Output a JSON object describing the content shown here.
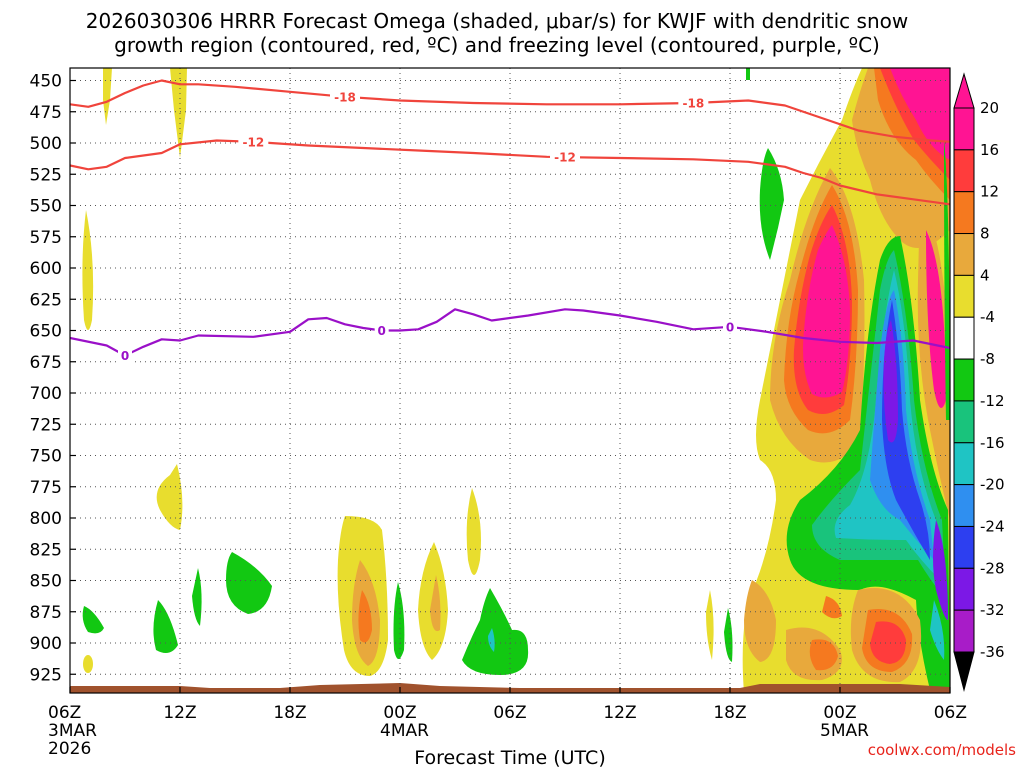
{
  "chart_data": {
    "type": "heatmap",
    "title_lines": [
      "2026030306 HRRR Forecast Omega (shaded, μbar/s) for KWJF with dendritic snow",
      "growth region (contoured, red, ºC) and freezing level (contoured, purple, ºC)"
    ],
    "xlabel": "Forecast Time (UTC)",
    "credit": "coolwx.com/models",
    "x_range_hours": [
      0,
      48
    ],
    "x_ticks": [
      {
        "hour": 0,
        "label": "06Z",
        "sub": [
          "3MAR",
          "2026"
        ]
      },
      {
        "hour": 6,
        "label": "12Z",
        "sub": []
      },
      {
        "hour": 12,
        "label": "18Z",
        "sub": []
      },
      {
        "hour": 18,
        "label": "00Z",
        "sub": [
          "4MAR"
        ]
      },
      {
        "hour": 24,
        "label": "06Z",
        "sub": []
      },
      {
        "hour": 30,
        "label": "12Z",
        "sub": []
      },
      {
        "hour": 36,
        "label": "18Z",
        "sub": []
      },
      {
        "hour": 42,
        "label": "00Z",
        "sub": [
          "5MAR"
        ]
      },
      {
        "hour": 48,
        "label": "06Z",
        "sub": []
      }
    ],
    "y_range_hpa": [
      440,
      940
    ],
    "y_ticks": [
      "450",
      "475",
      "500",
      "525",
      "550",
      "575",
      "600",
      "625",
      "650",
      "675",
      "700",
      "725",
      "750",
      "775",
      "800",
      "825",
      "850",
      "875",
      "900",
      "925"
    ],
    "colorbar": {
      "ticks": [
        "20",
        "16",
        "12",
        "8",
        "4",
        "-4",
        "-8",
        "-12",
        "-16",
        "-20",
        "-24",
        "-28",
        "-32",
        "-36"
      ],
      "bins": [
        "#ff1493",
        "#ff3c3c",
        "#f5791f",
        "#e8a93c",
        "#e8dd2e",
        "#ffffff",
        "#12c812",
        "#19c37c",
        "#1fc4c4",
        "#2f8ff0",
        "#2d3ff0",
        "#7c18e6",
        "#a81cc8",
        "#aaaaaa"
      ]
    },
    "contours": [
      {
        "name": "-18",
        "label": "-18",
        "color": "#f0443c",
        "points": [
          [
            0,
            469
          ],
          [
            1,
            471
          ],
          [
            2,
            467
          ],
          [
            3,
            460
          ],
          [
            4,
            454
          ],
          [
            5,
            450
          ],
          [
            6,
            453
          ],
          [
            7,
            453
          ],
          [
            9,
            455
          ],
          [
            12,
            459
          ],
          [
            15,
            463
          ],
          [
            18,
            466
          ],
          [
            22,
            468
          ],
          [
            26,
            469
          ],
          [
            30,
            469
          ],
          [
            34,
            468
          ],
          [
            37,
            466
          ],
          [
            39,
            470
          ],
          [
            41,
            480
          ],
          [
            43,
            490
          ],
          [
            45,
            495
          ],
          [
            47,
            498
          ],
          [
            48,
            499
          ]
        ],
        "labels": [
          {
            "hour": 15,
            "text": "-18"
          },
          {
            "hour": 34,
            "text": "-18"
          }
        ]
      },
      {
        "name": "-12",
        "label": "-12",
        "color": "#f0443c",
        "points": [
          [
            0,
            518
          ],
          [
            1,
            521
          ],
          [
            2,
            519
          ],
          [
            3,
            512
          ],
          [
            5,
            508
          ],
          [
            6,
            501
          ],
          [
            8,
            498
          ],
          [
            10,
            499
          ],
          [
            13,
            502
          ],
          [
            16,
            504
          ],
          [
            19,
            506
          ],
          [
            22,
            508
          ],
          [
            26,
            511
          ],
          [
            30,
            512
          ],
          [
            34,
            513
          ],
          [
            37,
            515
          ],
          [
            39,
            519
          ],
          [
            40,
            524
          ],
          [
            41,
            528
          ],
          [
            42,
            534
          ],
          [
            44,
            541
          ],
          [
            46,
            545
          ],
          [
            48,
            549
          ]
        ],
        "labels": [
          {
            "hour": 10,
            "text": "-12"
          },
          {
            "hour": 27,
            "text": "-12"
          }
        ]
      },
      {
        "name": "0",
        "label": "0",
        "color": "#9a10c8",
        "points": [
          [
            0,
            656
          ],
          [
            2,
            662
          ],
          [
            3,
            670
          ],
          [
            4,
            663
          ],
          [
            5,
            657
          ],
          [
            6,
            658
          ],
          [
            7,
            654
          ],
          [
            10,
            655
          ],
          [
            12,
            651
          ],
          [
            13,
            641
          ],
          [
            14,
            640
          ],
          [
            15,
            645
          ],
          [
            16,
            648
          ],
          [
            17,
            650
          ],
          [
            18,
            650
          ],
          [
            19,
            649
          ],
          [
            20,
            643
          ],
          [
            21,
            633
          ],
          [
            22,
            637
          ],
          [
            23,
            642
          ],
          [
            25,
            638
          ],
          [
            27,
            633
          ],
          [
            28,
            634
          ],
          [
            30,
            638
          ],
          [
            32,
            643
          ],
          [
            34,
            649
          ],
          [
            36,
            647
          ],
          [
            38,
            651
          ],
          [
            40,
            656
          ],
          [
            42,
            659
          ],
          [
            44,
            660
          ],
          [
            46,
            658
          ],
          [
            48,
            664
          ]
        ],
        "labels": [
          {
            "hour": 3,
            "text": "0"
          },
          {
            "hour": 17,
            "text": "0"
          },
          {
            "hour": 36,
            "text": "0"
          }
        ]
      }
    ]
  }
}
